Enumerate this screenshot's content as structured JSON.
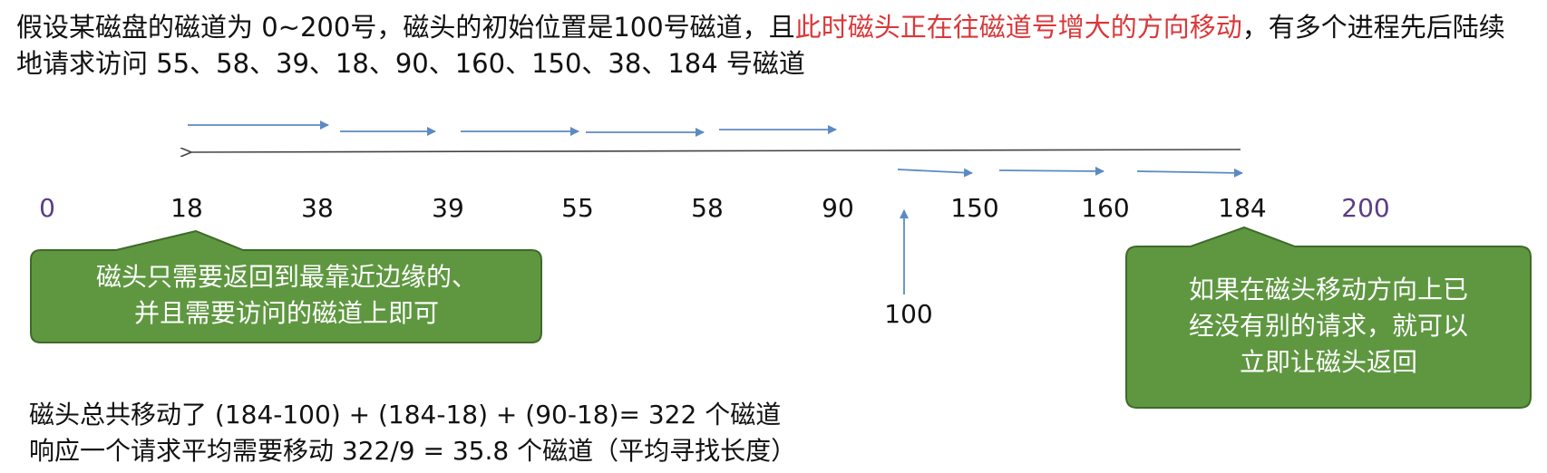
{
  "intro": {
    "before_red": "假设某磁盘的磁道为 0~200号，磁头的初始位置是100号磁道，且",
    "red": "此时磁头正在往磁道号增大的方向移动",
    "after_red": "，有多个进程先后陆续地请求访问 55、58、39、18、90、160、150、38、184 号磁道"
  },
  "track_labels": [
    "0",
    "18",
    "38",
    "39",
    "55",
    "58",
    "90",
    "150",
    "160",
    "184",
    "200"
  ],
  "start_label": "100",
  "callout_left": {
    "line1": "磁头只需要返回到最靠近边缘的、",
    "line2": "并且需要访问的磁道上即可"
  },
  "callout_right": {
    "line1": "如果在磁头移动方向上已",
    "line2": "经没有别的请求，就可以",
    "line3": "立即让磁头返回"
  },
  "summary": {
    "line1": "磁头总共移动了 (184-100) + (184-18) + (90-18)= 322 个磁道",
    "line2": "响应一个请求平均需要移动 322/9 = 35.8 个磁道（平均寻找长度）"
  },
  "colors": {
    "arrow": "#5b8ac4",
    "return_line": "#444444",
    "callout_fill": "#5e9740",
    "callout_stroke": "#3f6a2b",
    "red_text": "#d9383a",
    "edge_label": "#5b3d86"
  }
}
